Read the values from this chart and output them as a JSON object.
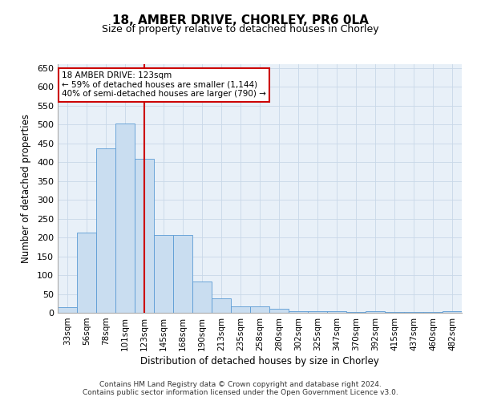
{
  "title1": "18, AMBER DRIVE, CHORLEY, PR6 0LA",
  "title2": "Size of property relative to detached houses in Chorley",
  "xlabel": "Distribution of detached houses by size in Chorley",
  "ylabel": "Number of detached properties",
  "footnote1": "Contains HM Land Registry data © Crown copyright and database right 2024.",
  "footnote2": "Contains public sector information licensed under the Open Government Licence v3.0.",
  "annotation_line1": "18 AMBER DRIVE: 123sqm",
  "annotation_line2": "← 59% of detached houses are smaller (1,144)",
  "annotation_line3": "40% of semi-detached houses are larger (790) →",
  "bar_color": "#c9ddf0",
  "bar_edge_color": "#5b9bd5",
  "vline_color": "#cc0000",
  "annotation_box_edge": "#cc0000",
  "categories": [
    "33sqm",
    "56sqm",
    "78sqm",
    "101sqm",
    "123sqm",
    "145sqm",
    "168sqm",
    "190sqm",
    "213sqm",
    "235sqm",
    "258sqm",
    "280sqm",
    "302sqm",
    "325sqm",
    "347sqm",
    "370sqm",
    "392sqm",
    "415sqm",
    "437sqm",
    "460sqm",
    "482sqm"
  ],
  "values": [
    15,
    212,
    437,
    503,
    408,
    206,
    207,
    84,
    38,
    18,
    18,
    10,
    5,
    5,
    5,
    2,
    5,
    2,
    2,
    2,
    5
  ],
  "ylim": [
    0,
    660
  ],
  "yticks": [
    0,
    50,
    100,
    150,
    200,
    250,
    300,
    350,
    400,
    450,
    500,
    550,
    600,
    650
  ],
  "grid_color": "#c8d8e8",
  "bg_color": "#e8f0f8",
  "vline_x_index": 4,
  "title1_fontsize": 11,
  "title2_fontsize": 9,
  "xlabel_fontsize": 8.5,
  "ylabel_fontsize": 8.5,
  "xtick_fontsize": 7.5,
  "ytick_fontsize": 8,
  "footnote_fontsize": 6.5
}
